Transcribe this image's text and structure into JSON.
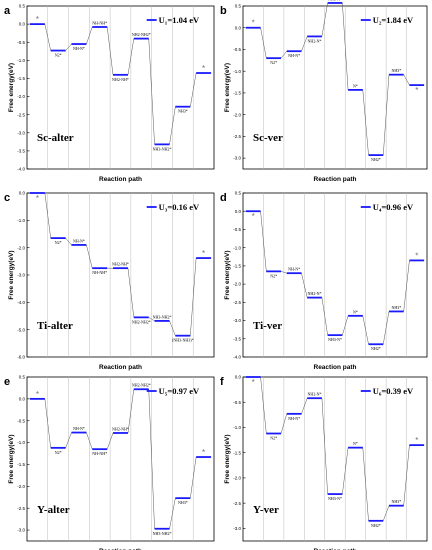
{
  "chart_data": [
    {
      "type": "line",
      "panel": "a",
      "label": "Sc-alter",
      "legend": "U₁=1.04 eV",
      "ylabel": "Free energy(eV)",
      "xlabel": "Reaction path",
      "ylim": [
        -4.0,
        0.5
      ],
      "yticks": [
        0.5,
        0.0,
        -0.5,
        -1.0,
        -1.5,
        -2.0,
        -2.5,
        -3.0,
        -3.5,
        -4.0
      ],
      "ytick_labels": [
        "0.5",
        "0.0",
        "-0.5",
        "-1.0",
        "-1.5",
        "-2.0",
        "-2.5",
        "-3.0",
        "-3.5",
        "-4.0"
      ],
      "steps": [
        {
          "label": "*",
          "value": 0.0,
          "label_pos": "above"
        },
        {
          "label": "N2*",
          "value": -0.73,
          "label_pos": "below"
        },
        {
          "label": "NH-N*",
          "value": -0.55,
          "label_pos": "below"
        },
        {
          "label": "NH-NH*",
          "value": -0.08,
          "label_pos": "above"
        },
        {
          "label": "NH2-NH*",
          "value": -1.4,
          "label_pos": "below"
        },
        {
          "label": "NH2-NH2*",
          "value": -0.4,
          "label_pos": "above"
        },
        {
          "label": "NH3-NH2*",
          "value": -3.32,
          "label_pos": "below"
        },
        {
          "label": "NH3*",
          "value": -2.28,
          "label_pos": "below"
        },
        {
          "label": "*",
          "value": -1.35,
          "label_pos": "above"
        }
      ]
    },
    {
      "type": "line",
      "panel": "b",
      "label": "Sc-ver",
      "legend": "U₂=1.84 eV",
      "ylabel": "Free energy(eV)",
      "xlabel": "Reaction path",
      "ylim": [
        -3.25,
        0.5
      ],
      "yticks": [
        0.5,
        0.0,
        -0.5,
        -1.0,
        -1.5,
        -2.0,
        -2.5,
        -3.0
      ],
      "ytick_labels": [
        "0.5",
        "0.0",
        "-0.5",
        "-1.0",
        "-1.5",
        "-2.0",
        "-2.5",
        "-3.0"
      ],
      "steps": [
        {
          "label": "*",
          "value": 0.0,
          "label_pos": "above"
        },
        {
          "label": "N2*",
          "value": -0.7,
          "label_pos": "below"
        },
        {
          "label": "NH-N*",
          "value": -0.54,
          "label_pos": "below"
        },
        {
          "label": "NH2-N*",
          "value": -0.2,
          "label_pos": "below"
        },
        {
          "label": "NH3-N*",
          "value": 0.57,
          "label_pos": "above"
        },
        {
          "label": "N*",
          "value": -1.43,
          "label_pos": "above"
        },
        {
          "label": "NH2*",
          "value": -2.93,
          "label_pos": "below"
        },
        {
          "label": "NH3*",
          "value": -1.08,
          "label_pos": "above"
        },
        {
          "label": "*",
          "value": -1.32,
          "label_pos": "below"
        }
      ]
    },
    {
      "type": "line",
      "panel": "c",
      "label": "Ti-alter",
      "legend": "U₃=0.16 eV",
      "ylabel": "Free energy(eV)",
      "xlabel": "Reaction path",
      "ylim": [
        -6.0,
        0.0
      ],
      "yticks": [
        0.0,
        -1.0,
        -2.0,
        -3.0,
        -4.0,
        -5.0,
        -6.0
      ],
      "ytick_labels": [
        "0.0",
        "-1.0",
        "-2.0",
        "-3.0",
        "-4.0",
        "-5.0",
        "-6.0"
      ],
      "steps": [
        {
          "label": "*",
          "value": 0.0,
          "label_pos": "below"
        },
        {
          "label": "N2*",
          "value": -1.65,
          "label_pos": "below"
        },
        {
          "label": "NH-N*",
          "value": -1.9,
          "label_pos": "above"
        },
        {
          "label": "NH-NH*",
          "value": -2.75,
          "label_pos": "below"
        },
        {
          "label": "NH2-NH*",
          "value": -2.75,
          "label_pos": "above"
        },
        {
          "label": "NH2-NH2*",
          "value": -4.55,
          "label_pos": "below"
        },
        {
          "label": "NH3-NH2*",
          "value": -4.68,
          "label_pos": "above"
        },
        {
          "label": "(NH3-NH3)*",
          "value": -5.22,
          "label_pos": "below"
        },
        {
          "label": "*",
          "value": -2.38,
          "label_pos": "above"
        }
      ]
    },
    {
      "type": "line",
      "panel": "d",
      "label": "Ti-ver",
      "legend": "U₄=0.96 eV",
      "ylabel": "Free energy(eV)",
      "xlabel": "Reaction path",
      "ylim": [
        -4.0,
        0.5
      ],
      "yticks": [
        0.5,
        0.0,
        -0.5,
        -1.0,
        -1.5,
        -2.0,
        -2.5,
        -3.0,
        -3.5,
        -4.0
      ],
      "ytick_labels": [
        "0.5",
        "0.0",
        "-0.5",
        "-1.0",
        "-1.5",
        "-2.0",
        "-2.5",
        "-3.0",
        "-3.5",
        "-4.0"
      ],
      "steps": [
        {
          "label": "*",
          "value": 0.0,
          "label_pos": "below"
        },
        {
          "label": "N2*",
          "value": -1.65,
          "label_pos": "below"
        },
        {
          "label": "NH-N*",
          "value": -1.7,
          "label_pos": "above"
        },
        {
          "label": "NH2-N*",
          "value": -2.37,
          "label_pos": "above"
        },
        {
          "label": "NH3-N*",
          "value": -3.4,
          "label_pos": "below"
        },
        {
          "label": "N*",
          "value": -2.87,
          "label_pos": "above"
        },
        {
          "label": "NH2*",
          "value": -3.65,
          "label_pos": "below"
        },
        {
          "label": "NH3*",
          "value": -2.75,
          "label_pos": "above"
        },
        {
          "label": "*",
          "value": -1.35,
          "label_pos": "above"
        }
      ]
    },
    {
      "type": "line",
      "panel": "e",
      "label": "Y-alter",
      "legend": "U₅=0.97 eV",
      "ylabel": "Free energy(eV)",
      "xlabel": "Reaction path",
      "ylim": [
        -3.25,
        0.5
      ],
      "yticks": [
        0.5,
        0.0,
        -0.5,
        -1.0,
        -1.5,
        -2.0,
        -2.5,
        -3.0
      ],
      "ytick_labels": [
        "0.5",
        "0.0",
        "-0.5",
        "-1.0",
        "-1.5",
        "-2.0",
        "-2.5",
        "-3.0"
      ],
      "steps": [
        {
          "label": "*",
          "value": 0.0,
          "label_pos": "above"
        },
        {
          "label": "N2*",
          "value": -1.12,
          "label_pos": "below"
        },
        {
          "label": "NH-N*",
          "value": -0.77,
          "label_pos": "above"
        },
        {
          "label": "NH-NH*",
          "value": -1.15,
          "label_pos": "below"
        },
        {
          "label": "NH2-NH*",
          "value": -0.78,
          "label_pos": "above"
        },
        {
          "label": "NH2-NH2*",
          "value": 0.22,
          "label_pos": "above"
        },
        {
          "label": "NH3-NH2*",
          "value": -2.97,
          "label_pos": "below"
        },
        {
          "label": "NH3*",
          "value": -2.27,
          "label_pos": "below"
        },
        {
          "label": "*",
          "value": -1.33,
          "label_pos": "above"
        }
      ]
    },
    {
      "type": "line",
      "panel": "f",
      "label": "Y-ver",
      "legend": "U₆=0.39 eV",
      "ylabel": "Free energy(eV)",
      "xlabel": "Reaction path",
      "ylim": [
        -3.25,
        0.0
      ],
      "yticks": [
        0.0,
        -0.5,
        -1.0,
        -1.5,
        -2.0,
        -2.5,
        -3.0
      ],
      "ytick_labels": [
        "0.0",
        "-0.5",
        "-1.0",
        "-1.5",
        "-2.0",
        "-2.5",
        "-3.0"
      ],
      "steps": [
        {
          "label": "*",
          "value": 0.0,
          "label_pos": "below"
        },
        {
          "label": "N2*",
          "value": -1.12,
          "label_pos": "below"
        },
        {
          "label": "NH-N*",
          "value": -0.73,
          "label_pos": "below"
        },
        {
          "label": "NH2-N*",
          "value": -0.42,
          "label_pos": "above"
        },
        {
          "label": "NH3-N*",
          "value": -2.32,
          "label_pos": "below"
        },
        {
          "label": "N*",
          "value": -1.4,
          "label_pos": "above"
        },
        {
          "label": "NH2*",
          "value": -2.85,
          "label_pos": "below"
        },
        {
          "label": "NH3*",
          "value": -2.55,
          "label_pos": "above"
        },
        {
          "label": "*",
          "value": -1.35,
          "label_pos": "above"
        }
      ]
    }
  ],
  "colors": {
    "level": "#1a1aff",
    "connector": "#555555",
    "divider": "#bbbbbb",
    "star": "#707070"
  }
}
